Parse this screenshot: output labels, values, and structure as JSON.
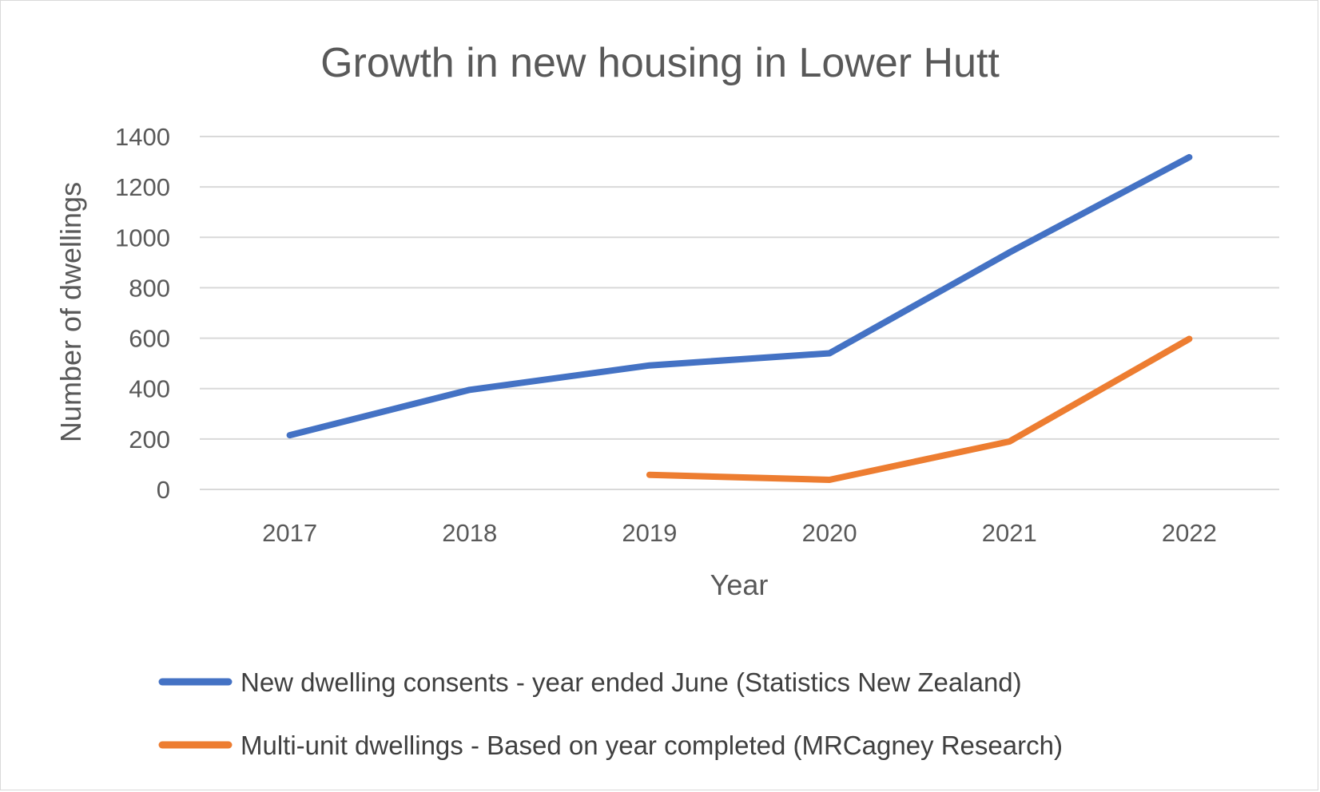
{
  "chart_data": {
    "type": "line",
    "title": "Growth in new housing in Lower Hutt",
    "xlabel": "Year",
    "ylabel": "Number of dwellings",
    "categories": [
      "2017",
      "2018",
      "2019",
      "2020",
      "2021",
      "2022"
    ],
    "ylim": [
      0,
      1400
    ],
    "yticks": [
      "0",
      "200",
      "400",
      "600",
      "800",
      "1000",
      "1200",
      "1400"
    ],
    "grid": true,
    "legend_position": "bottom",
    "series": [
      {
        "name": "New dwelling consents - year ended June (Statistics New Zealand)",
        "color": "#4472C4",
        "values": [
          215,
          395,
          492,
          540,
          940,
          1318
        ]
      },
      {
        "name": "Multi-unit dwellings - Based on year completed (MRCagney Research)",
        "color": "#ED7D31",
        "values": [
          null,
          null,
          58,
          38,
          190,
          597
        ]
      }
    ]
  }
}
